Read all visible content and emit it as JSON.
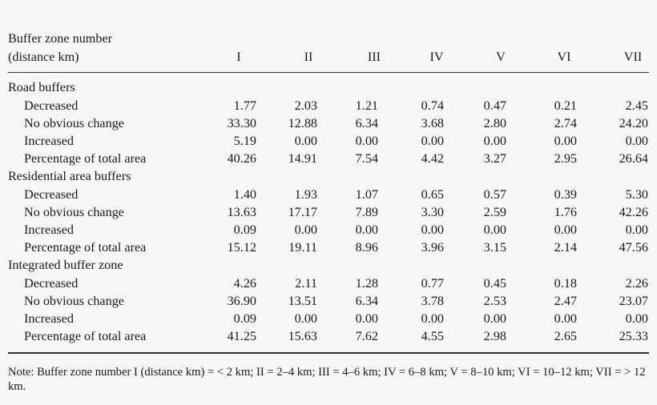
{
  "table": {
    "header": {
      "label_line1": "Buffer zone number",
      "label_line2": "(distance km)",
      "columns": [
        "I",
        "II",
        "III",
        "IV",
        "V",
        "VI",
        "VII"
      ]
    },
    "groups": [
      {
        "title": "Road buffers",
        "rows": [
          {
            "label": "Decreased",
            "values": [
              "1.77",
              "2.03",
              "1.21",
              "0.74",
              "0.47",
              "0.21",
              "2.45"
            ]
          },
          {
            "label": "No obvious change",
            "values": [
              "33.30",
              "12.88",
              "6.34",
              "3.68",
              "2.80",
              "2.74",
              "24.20"
            ]
          },
          {
            "label": "Increased",
            "values": [
              "5.19",
              "0.00",
              "0.00",
              "0.00",
              "0.00",
              "0.00",
              "0.00"
            ]
          },
          {
            "label": "Percentage of total area",
            "values": [
              "40.26",
              "14.91",
              "7.54",
              "4.42",
              "3.27",
              "2.95",
              "26.64"
            ]
          }
        ]
      },
      {
        "title": "Residential area buffers",
        "rows": [
          {
            "label": "Decreased",
            "values": [
              "1.40",
              "1.93",
              "1.07",
              "0.65",
              "0.57",
              "0.39",
              "5.30"
            ]
          },
          {
            "label": "No obvious change",
            "values": [
              "13.63",
              "17.17",
              "7.89",
              "3.30",
              "2.59",
              "1.76",
              "42.26"
            ]
          },
          {
            "label": "Increased",
            "values": [
              "0.09",
              "0.00",
              "0.00",
              "0.00",
              "0.00",
              "0.00",
              "0.00"
            ]
          },
          {
            "label": "Percentage of total area",
            "values": [
              "15.12",
              "19.11",
              "8.96",
              "3.96",
              "3.15",
              "2.14",
              "47.56"
            ]
          }
        ]
      },
      {
        "title": "Integrated buffer zone",
        "rows": [
          {
            "label": "Decreased",
            "values": [
              "4.26",
              "2.11",
              "1.28",
              "0.77",
              "0.45",
              "0.18",
              "2.26"
            ]
          },
          {
            "label": "No obvious change",
            "values": [
              "36.90",
              "13.51",
              "6.34",
              "3.78",
              "2.53",
              "2.47",
              "23.07"
            ]
          },
          {
            "label": "Increased",
            "values": [
              "0.09",
              "0.00",
              "0.00",
              "0.00",
              "0.00",
              "0.00",
              "0.00"
            ]
          },
          {
            "label": "Percentage of total area",
            "values": [
              "41.25",
              "15.63",
              "7.62",
              "4.55",
              "2.98",
              "2.65",
              "25.33"
            ]
          }
        ]
      }
    ],
    "note": "Note: Buffer zone number I (distance km) = < 2 km; II = 2–4 km; III = 4–6 km; IV = 6–8 km; V = 8–10 km; VI = 10–12 km; VII = > 12 km."
  }
}
